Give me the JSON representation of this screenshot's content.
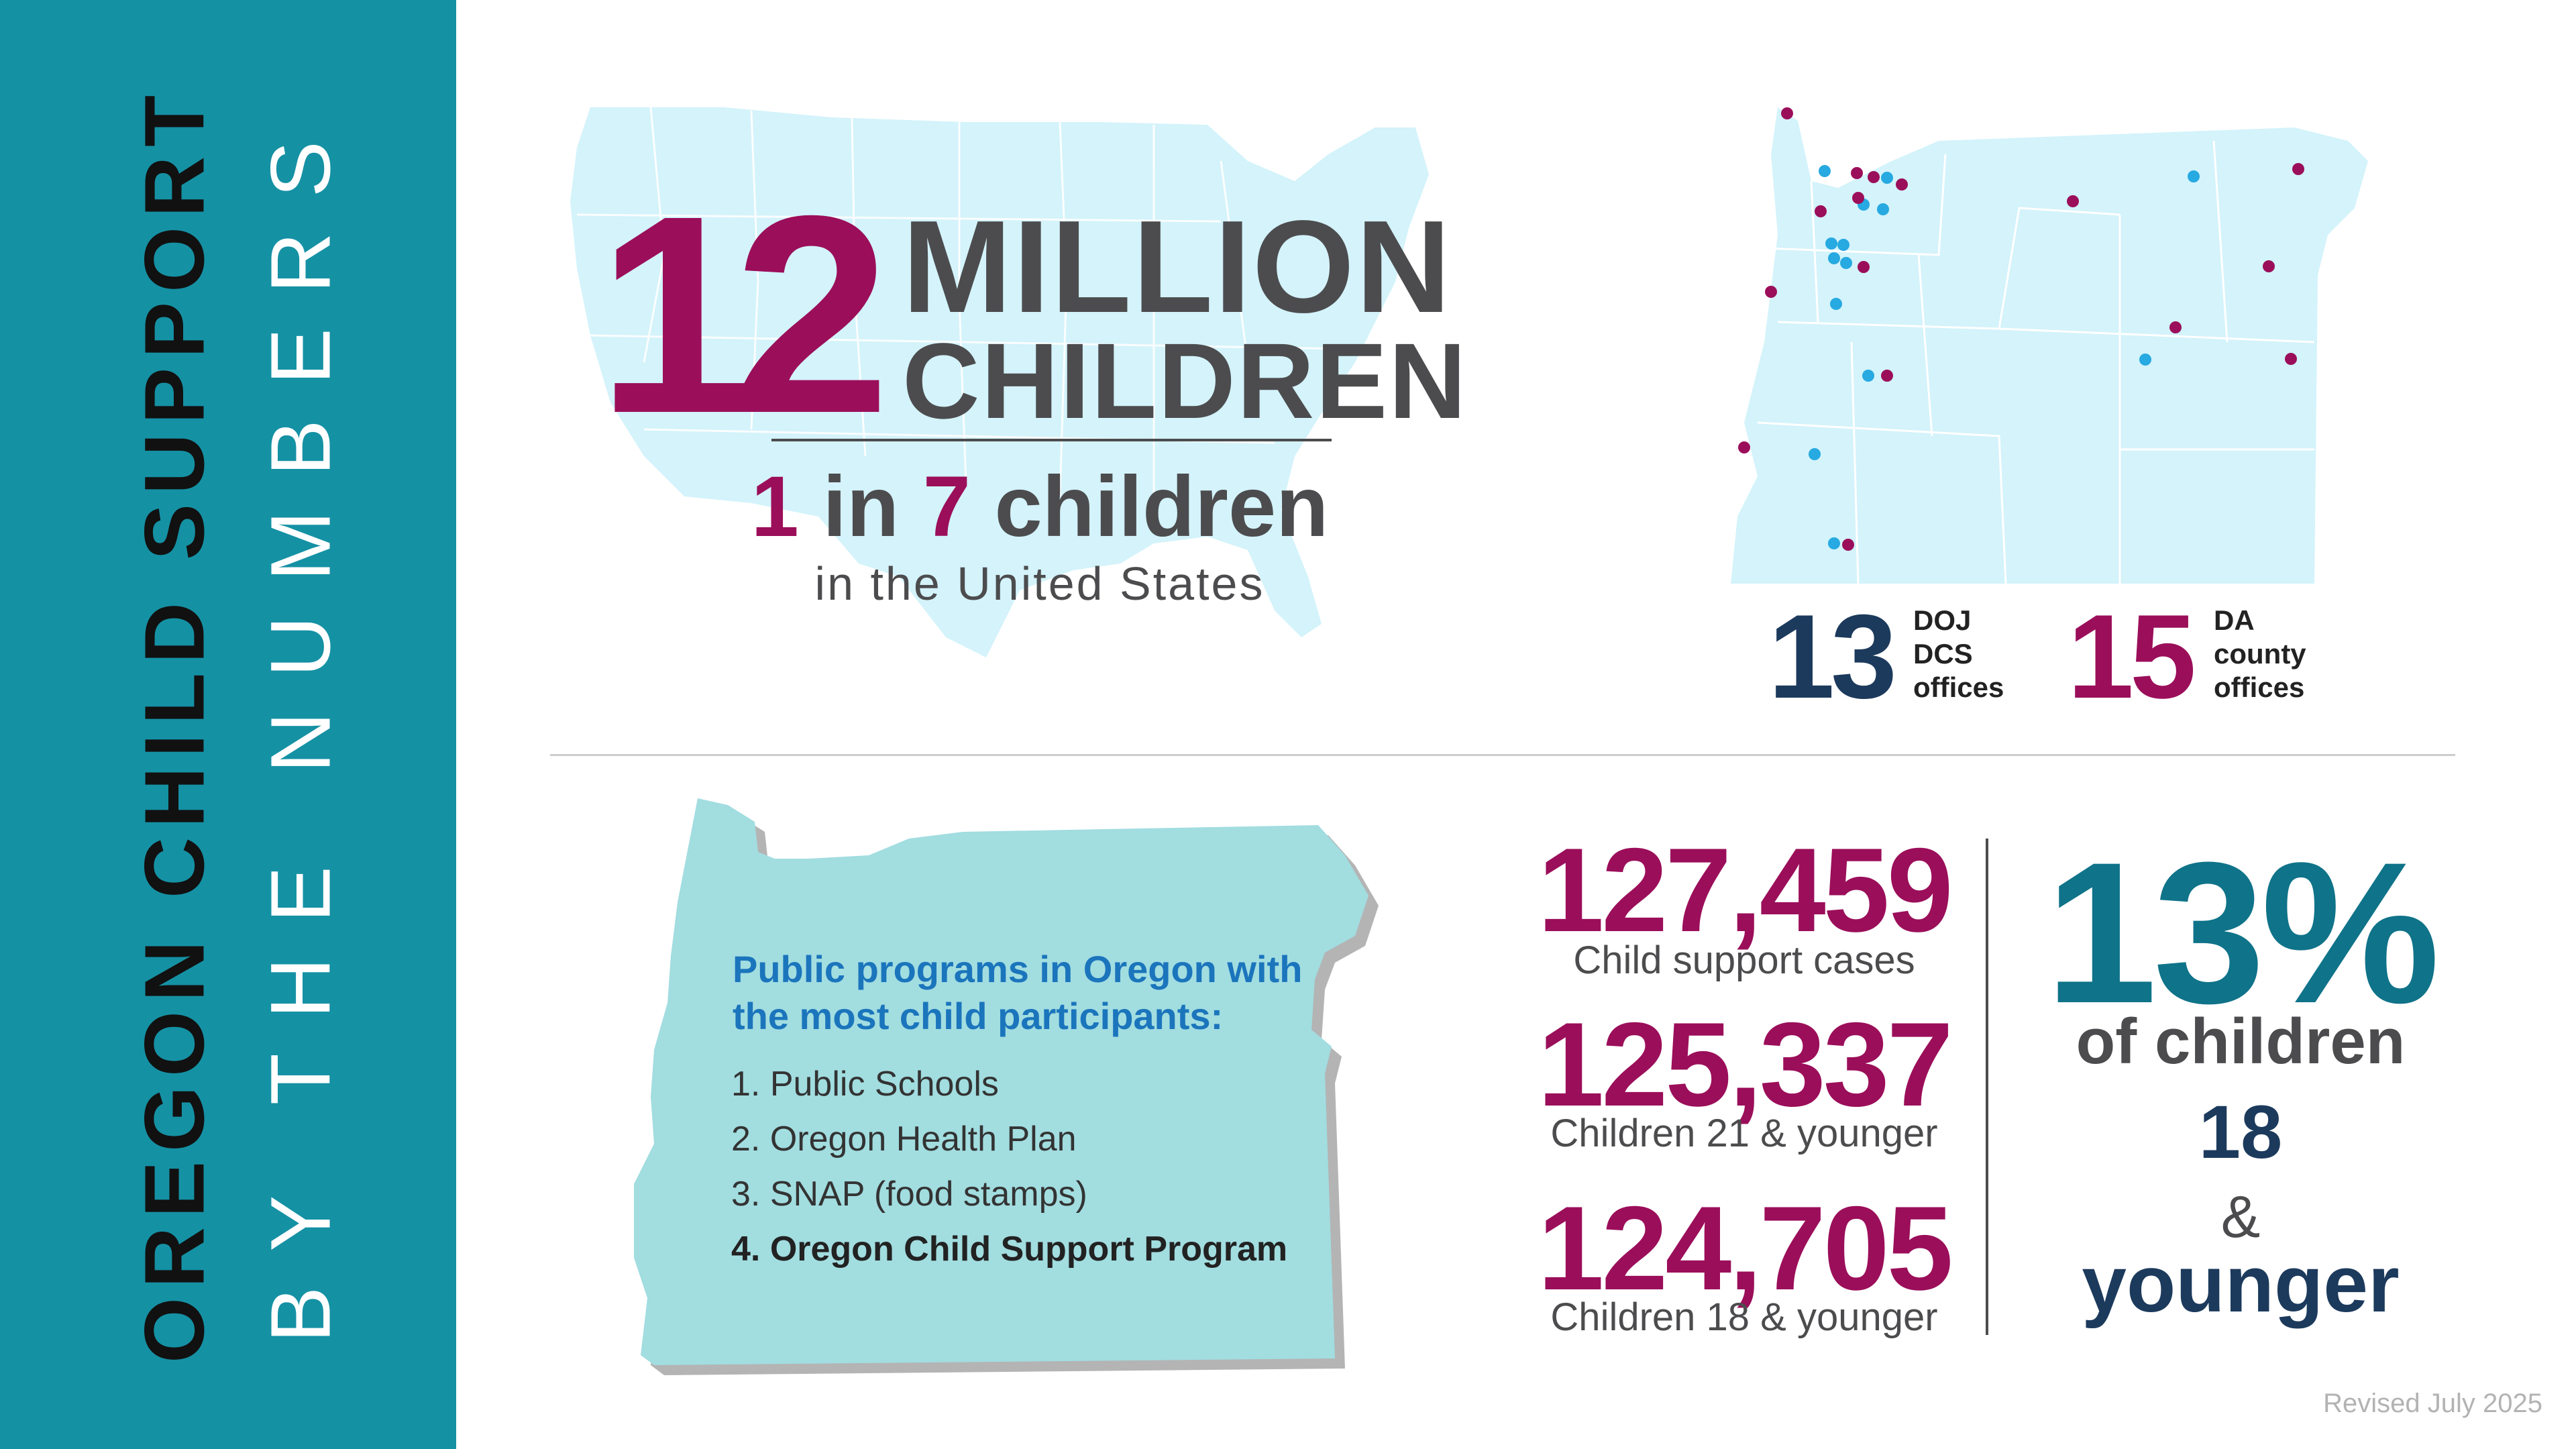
{
  "sidebar": {
    "title_line1": "OREGON CHILD SUPPORT",
    "title_line2": "BY THE NUMBERS"
  },
  "national": {
    "number": "12",
    "million": "MILLION",
    "children": "CHILDREN",
    "ratio_num1": "1",
    "ratio_in": " in ",
    "ratio_num2": "7",
    "ratio_children": " children",
    "location": "in the United States"
  },
  "offices": {
    "doj_count": "13",
    "doj_label": "DOJ\nDCS\noffices",
    "da_count": "15",
    "da_label": "DA\ncounty\noffices"
  },
  "programs": {
    "title": "Public programs in Oregon with the most child participants:",
    "items": [
      "1. Public Schools",
      "2. Oregon Health Plan",
      "3. SNAP (food stamps)",
      "4. Oregon Child Support Program"
    ]
  },
  "stats": [
    {
      "value": "127,459",
      "label": "Child support cases"
    },
    {
      "value": "125,337",
      "label": "Children 21 & younger"
    },
    {
      "value": "124,705",
      "label": "Children 18 & younger"
    }
  ],
  "percent": {
    "value": "13%",
    "of_children": "of children",
    "age": "18",
    "amp": "&",
    "younger": "younger"
  },
  "footer": {
    "revised": "Revised July 2025"
  },
  "colors": {
    "teal_band": "#1591a4",
    "magenta": "#9b0e5a",
    "navy": "#1c3a5c",
    "teal_dark": "#0f7389",
    "map_light": "#d4f3fb",
    "oregon_shape": "#a2dde0",
    "doj_dot": "#27a9e1",
    "da_dot": "#9b0e5a"
  }
}
